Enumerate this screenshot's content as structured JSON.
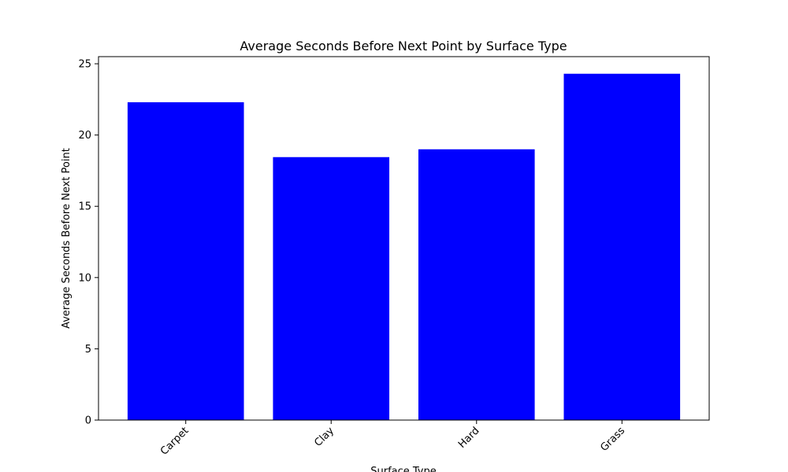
{
  "chart_data": {
    "type": "bar",
    "title": "Average Seconds Before Next Point by Surface Type",
    "xlabel": "Surface Type",
    "ylabel": "Average Seconds Before Next Point",
    "categories": [
      "Carpet",
      "Clay",
      "Hard",
      "Grass"
    ],
    "values": [
      22.3,
      18.45,
      19.0,
      24.3
    ],
    "ylim": [
      0,
      25.5
    ],
    "yticks": [
      "0",
      "5",
      "10",
      "15",
      "20",
      "25"
    ],
    "bar_color": "#0000ff",
    "grid": false,
    "legend": "none"
  }
}
